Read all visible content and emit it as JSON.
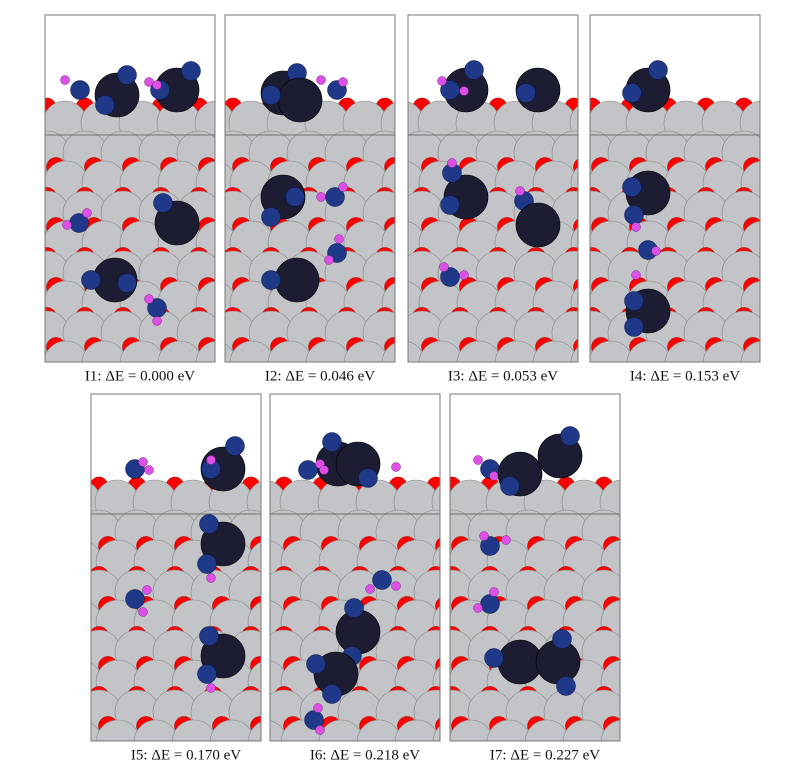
{
  "panels": [
    {
      "caption": "I1: ΔE = 0.000 eV"
    },
    {
      "caption": "I2: ΔE = 0.046 eV"
    },
    {
      "caption": "I3: ΔE = 0.053 eV"
    },
    {
      "caption": "I4: ΔE = 0.153 eV"
    },
    {
      "caption": "I5: ΔE = 0.170 eV"
    },
    {
      "caption": "I6: ΔE = 0.218 eV"
    },
    {
      "caption": "I7: ΔE = 0.227 eV"
    }
  ]
}
